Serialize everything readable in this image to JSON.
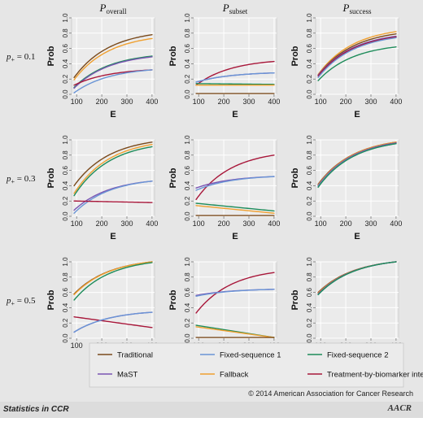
{
  "figure": {
    "column_titles": [
      {
        "main": "P",
        "sub": "overall"
      },
      {
        "main": "P",
        "sub": "subset"
      },
      {
        "main": "P",
        "sub": "success"
      }
    ],
    "row_labels": [
      {
        "main": "p",
        "sub": "+",
        "value": "= 0.1"
      },
      {
        "main": "p",
        "sub": "+",
        "value": "= 0.3"
      },
      {
        "main": "p",
        "sub": "+",
        "value": "= 0.5"
      }
    ],
    "copyright": "© 2014 American Association for Cancer Research",
    "footer_left": "Statistics in CCR",
    "footer_logo": "AACR"
  },
  "chart_data": {
    "type": "line",
    "xlabel": "E",
    "ylabel": "Prob",
    "xlim": [
      80,
      410
    ],
    "ylim": [
      0,
      1
    ],
    "x_ticks": [
      100,
      200,
      300,
      400
    ],
    "x_tick_labels": [
      "100",
      "200",
      "300",
      "400"
    ],
    "y_ticks": [
      0,
      0.2,
      0.4,
      0.6,
      0.8,
      1.0
    ],
    "y_tick_labels": [
      "0.0",
      "0.2",
      "0.4",
      "0.6",
      "0.8",
      "1.0"
    ],
    "grid": true,
    "x": [
      90,
      400
    ],
    "legend": {
      "placement": "bottom",
      "entries": [
        {
          "name": "Traditional",
          "color": "#7a4a1c"
        },
        {
          "name": "Fixed-sequence 1",
          "color": "#6a95d6"
        },
        {
          "name": "Fixed-sequence 2",
          "color": "#1e8c5a"
        },
        {
          "name": "MaST",
          "color": "#7b55b3"
        },
        {
          "name": "Fallback",
          "color": "#f0a030"
        },
        {
          "name": "Treatment-by-biomarker interaction",
          "color": "#a8173a"
        }
      ]
    },
    "panels": [
      {
        "row": 0,
        "col": 0,
        "series": [
          {
            "key": "Traditional",
            "values": [
              0.22,
              0.78
            ]
          },
          {
            "key": "Fallback",
            "values": [
              0.19,
              0.73
            ]
          },
          {
            "key": "Fixed-sequence 2",
            "values": [
              0.09,
              0.5
            ]
          },
          {
            "key": "MaST",
            "values": [
              0.08,
              0.49
            ]
          },
          {
            "key": "Treatment-by-biomarker interaction",
            "values": [
              0.12,
              0.32
            ]
          },
          {
            "key": "Fixed-sequence 1",
            "values": [
              0.02,
              0.32
            ]
          }
        ]
      },
      {
        "row": 0,
        "col": 1,
        "series": [
          {
            "key": "Treatment-by-biomarker interaction",
            "values": [
              0.12,
              0.43
            ]
          },
          {
            "key": "MaST",
            "values": [
              0.16,
              0.28
            ]
          },
          {
            "key": "Fixed-sequence 1",
            "values": [
              0.16,
              0.28
            ]
          },
          {
            "key": "Fixed-sequence 2",
            "values": [
              0.14,
              0.13
            ]
          },
          {
            "key": "Fallback",
            "values": [
              0.12,
              0.12
            ]
          },
          {
            "key": "Traditional",
            "values": [
              0.01,
              0.01
            ]
          }
        ]
      },
      {
        "row": 0,
        "col": 2,
        "series": [
          {
            "key": "Fallback",
            "values": [
              0.26,
              0.82
            ]
          },
          {
            "key": "Traditional",
            "values": [
              0.25,
              0.79
            ]
          },
          {
            "key": "MaST",
            "values": [
              0.25,
              0.76
            ]
          },
          {
            "key": "Treatment-by-biomarker interaction",
            "values": [
              0.24,
              0.75
            ]
          },
          {
            "key": "Fixed-sequence 1",
            "values": [
              0.22,
              0.74
            ]
          },
          {
            "key": "Fixed-sequence 2",
            "values": [
              0.18,
              0.62
            ]
          }
        ]
      },
      {
        "row": 1,
        "col": 0,
        "series": [
          {
            "key": "Traditional",
            "values": [
              0.4,
              0.97
            ]
          },
          {
            "key": "Fallback",
            "values": [
              0.3,
              0.94
            ]
          },
          {
            "key": "Fixed-sequence 2",
            "values": [
              0.27,
              0.91
            ]
          },
          {
            "key": "MaST",
            "values": [
              0.08,
              0.46
            ]
          },
          {
            "key": "Fixed-sequence 1",
            "values": [
              0.04,
              0.46
            ]
          },
          {
            "key": "Treatment-by-biomarker interaction",
            "values": [
              0.2,
              0.18
            ]
          }
        ]
      },
      {
        "row": 1,
        "col": 1,
        "series": [
          {
            "key": "Treatment-by-biomarker interaction",
            "values": [
              0.22,
              0.8
            ]
          },
          {
            "key": "MaST",
            "values": [
              0.37,
              0.52
            ]
          },
          {
            "key": "Fixed-sequence 1",
            "values": [
              0.34,
              0.52
            ]
          },
          {
            "key": "Fixed-sequence 2",
            "values": [
              0.17,
              0.07
            ]
          },
          {
            "key": "Fallback",
            "values": [
              0.14,
              0.04
            ]
          },
          {
            "key": "Traditional",
            "values": [
              0.01,
              0.01
            ]
          }
        ]
      },
      {
        "row": 1,
        "col": 2,
        "series": [
          {
            "key": "Traditional",
            "values": [
              0.42,
              0.97
            ]
          },
          {
            "key": "Fallback",
            "values": [
              0.41,
              0.97
            ]
          },
          {
            "key": "Treatment-by-biomarker interaction",
            "values": [
              0.4,
              0.96
            ]
          },
          {
            "key": "MaST",
            "values": [
              0.4,
              0.96
            ]
          },
          {
            "key": "Fixed-sequence 1",
            "values": [
              0.39,
              0.95
            ]
          },
          {
            "key": "Fixed-sequence 2",
            "values": [
              0.38,
              0.95
            ]
          }
        ]
      },
      {
        "row": 2,
        "col": 0,
        "series": [
          {
            "key": "Traditional",
            "values": [
              0.58,
              1.0
            ]
          },
          {
            "key": "Fallback",
            "values": [
              0.57,
              1.0
            ]
          },
          {
            "key": "Fixed-sequence 2",
            "values": [
              0.5,
              0.99
            ]
          },
          {
            "key": "Treatment-by-biomarker interaction",
            "values": [
              0.28,
              0.14
            ]
          },
          {
            "key": "MaST",
            "values": [
              0.08,
              0.34
            ]
          },
          {
            "key": "Fixed-sequence 1",
            "values": [
              0.08,
              0.34
            ]
          }
        ]
      },
      {
        "row": 2,
        "col": 1,
        "series": [
          {
            "key": "Treatment-by-biomarker interaction",
            "values": [
              0.33,
              0.86
            ]
          },
          {
            "key": "MaST",
            "values": [
              0.56,
              0.64
            ]
          },
          {
            "key": "Fixed-sequence 1",
            "values": [
              0.55,
              0.64
            ]
          },
          {
            "key": "Fixed-sequence 2",
            "values": [
              0.17,
              0.01
            ]
          },
          {
            "key": "Fallback",
            "values": [
              0.15,
              0.01
            ]
          },
          {
            "key": "Traditional",
            "values": [
              0.01,
              0.01
            ]
          }
        ]
      },
      {
        "row": 2,
        "col": 2,
        "series": [
          {
            "key": "Traditional",
            "values": [
              0.6,
              1.0
            ]
          },
          {
            "key": "Fallback",
            "values": [
              0.59,
              1.0
            ]
          },
          {
            "key": "Treatment-by-biomarker interaction",
            "values": [
              0.58,
              1.0
            ]
          },
          {
            "key": "MaST",
            "values": [
              0.58,
              1.0
            ]
          },
          {
            "key": "Fixed-sequence 1",
            "values": [
              0.57,
              1.0
            ]
          },
          {
            "key": "Fixed-sequence 2",
            "values": [
              0.57,
              1.0
            ]
          }
        ]
      }
    ]
  }
}
